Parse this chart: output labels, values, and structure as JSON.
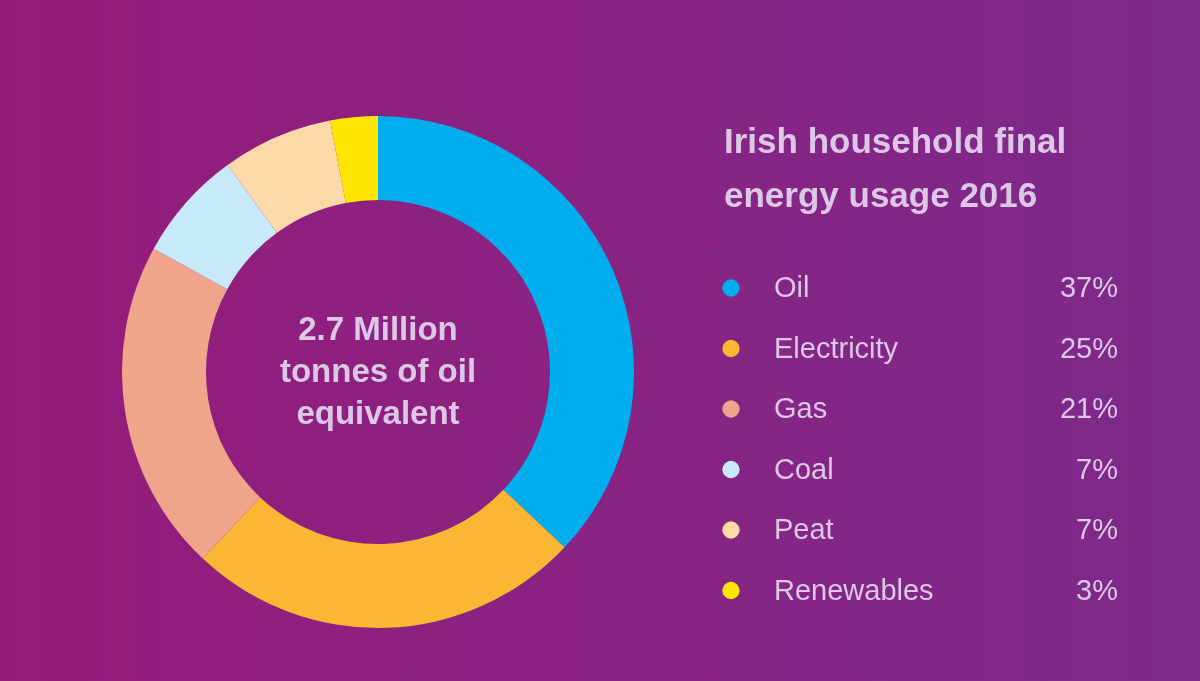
{
  "chart_data": {
    "type": "donut",
    "title": "Irish household final energy usage 2016",
    "categories": [
      "Oil",
      "Electricity",
      "Gas",
      "Coal",
      "Peat",
      "Renewables"
    ],
    "values": [
      37,
      25,
      21,
      7,
      7,
      3
    ],
    "colors": [
      "#00aeef",
      "#fbb633",
      "#f0a48c",
      "#c8e9f9",
      "#fbd9a9",
      "#ffe600"
    ],
    "value_labels": [
      "37%",
      "25%",
      "21%",
      "7%",
      "7%",
      "3%"
    ],
    "legend": "right",
    "annotations": [
      "2.7 Million tonnes of oil equivalent"
    ]
  }
}
